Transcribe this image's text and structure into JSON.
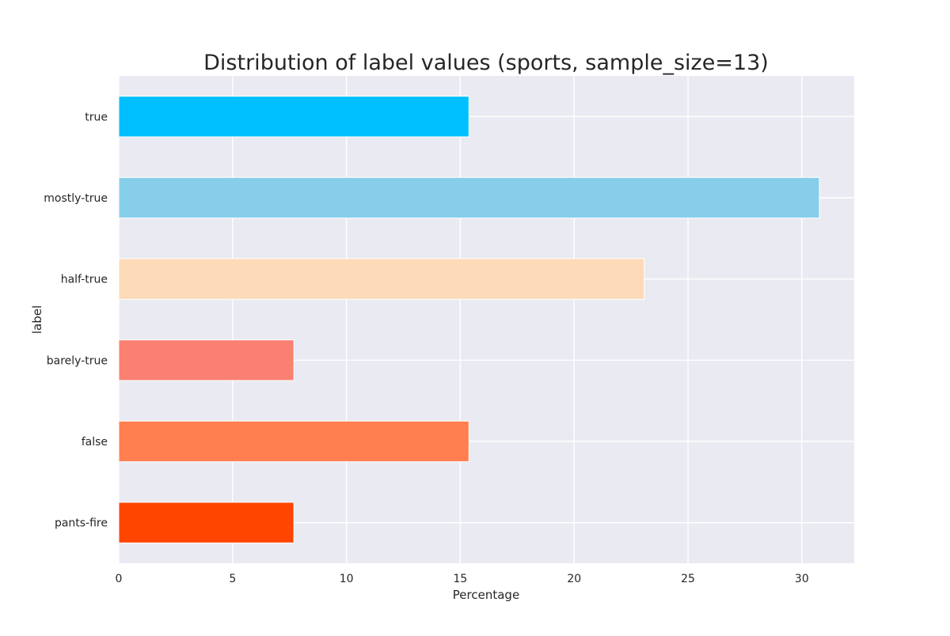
{
  "chart_data": {
    "type": "bar",
    "orientation": "horizontal",
    "title": "Distribution of label values (sports, sample_size=13)",
    "xlabel": "Percentage",
    "ylabel": "label",
    "categories": [
      "true",
      "mostly-true",
      "half-true",
      "barely-true",
      "false",
      "pants-fire"
    ],
    "values": [
      15.38,
      30.77,
      23.08,
      7.69,
      15.38,
      7.69
    ],
    "colors": [
      "#00bfff",
      "#87ceeb",
      "#fddab8",
      "#fa8072",
      "#ff7f50",
      "#ff4500"
    ],
    "xlim": [
      0,
      32.3
    ],
    "xticks": [
      0,
      5,
      10,
      15,
      20,
      25,
      30
    ],
    "grid": true,
    "background": "#eaeaf2",
    "legend": "none"
  }
}
